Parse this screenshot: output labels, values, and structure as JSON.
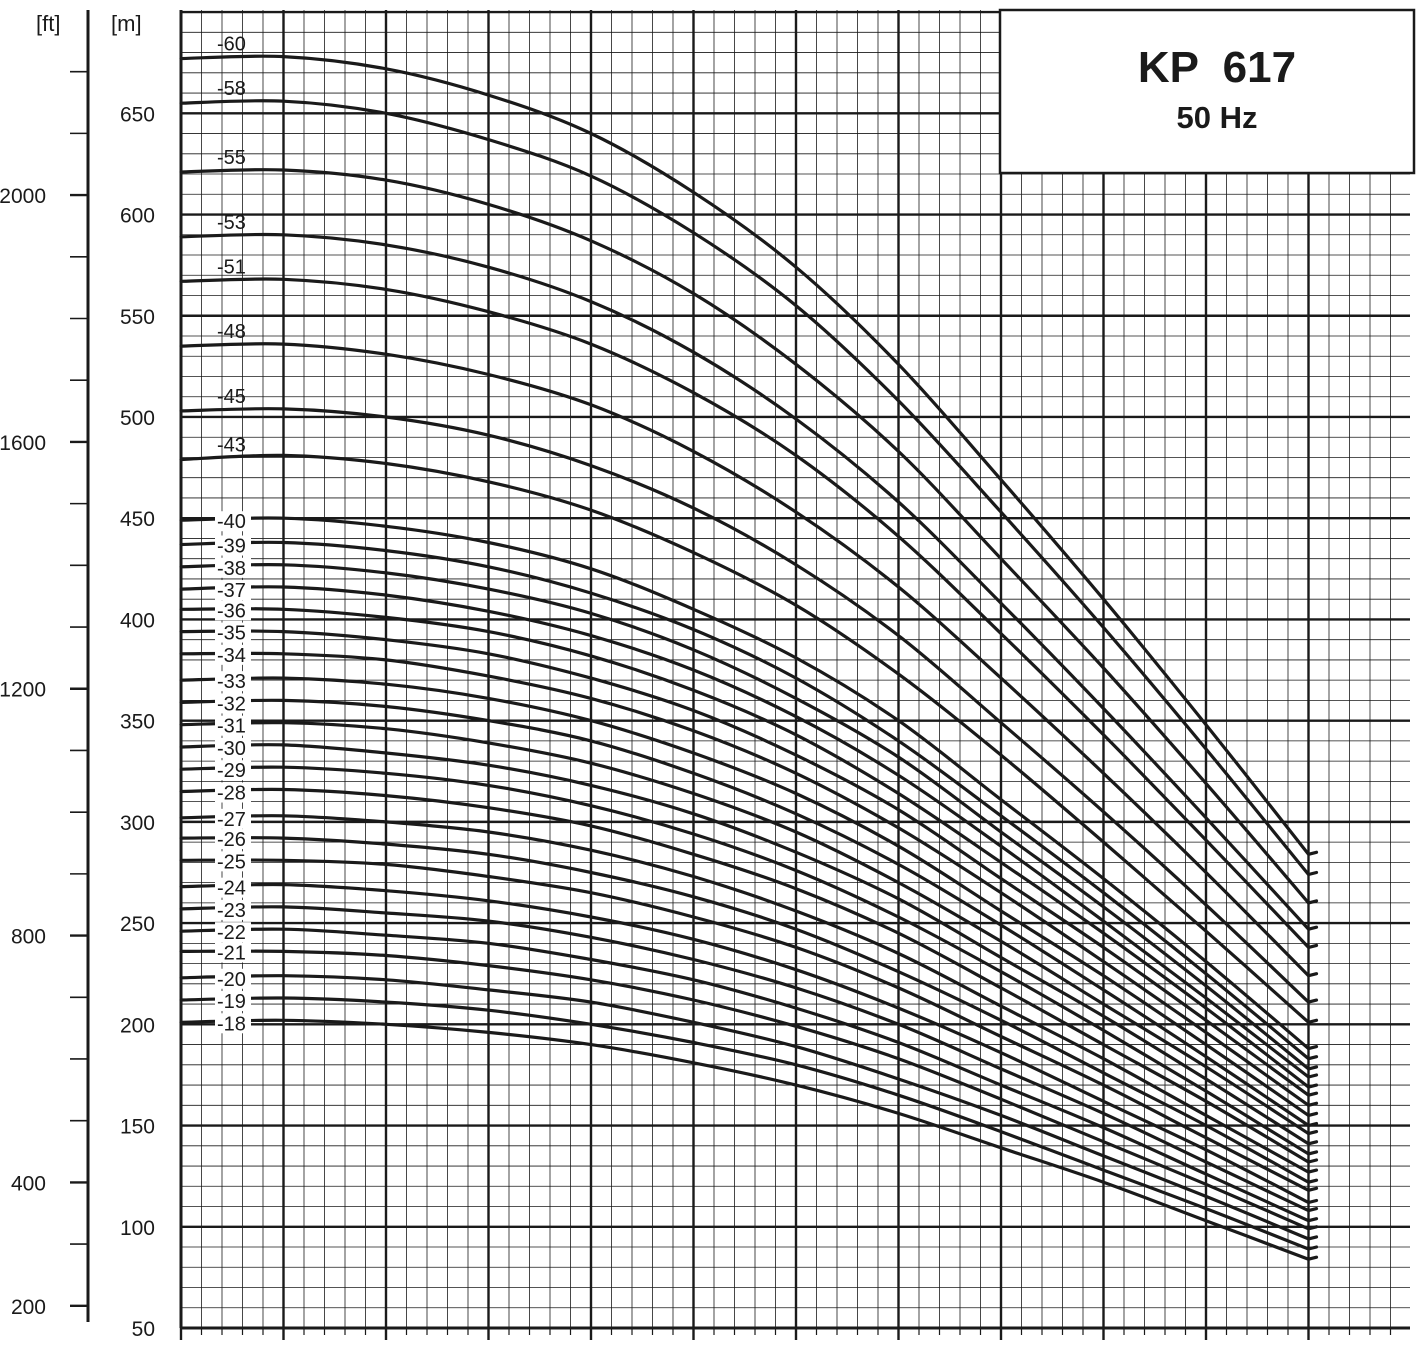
{
  "chart_data": {
    "type": "line",
    "title": "KP  617",
    "subtitle": "50 Hz",
    "axes": {
      "y_m": {
        "unit": "[m]",
        "min": 50,
        "max": 700,
        "ticks": [
          50,
          100,
          150,
          200,
          250,
          300,
          350,
          400,
          450,
          500,
          550,
          600,
          650
        ]
      },
      "y_ft": {
        "unit": "[ft]",
        "ticks": [
          200,
          400,
          800,
          1200,
          1600,
          2000
        ]
      },
      "x": {
        "min": 0,
        "max": 12,
        "tick_labels": []
      }
    },
    "grid": true,
    "curve_x": [
      0,
      1,
      2,
      3,
      4,
      5,
      6,
      7,
      8,
      9,
      10,
      11
    ],
    "series": [
      {
        "name": "-60",
        "values": [
          677,
          678,
          672,
          659,
          640,
          611,
          574,
          526,
          469,
          410,
          348,
          284
        ]
      },
      {
        "name": "-58",
        "values": [
          655,
          656,
          650,
          637,
          619,
          591,
          555,
          508,
          453,
          396,
          336,
          274
        ]
      },
      {
        "name": "-55",
        "values": [
          621,
          622,
          617,
          605,
          587,
          561,
          526,
          483,
          430,
          376,
          319,
          260
        ]
      },
      {
        "name": "-53",
        "values": [
          589,
          590,
          585,
          574,
          557,
          532,
          499,
          458,
          408,
          356,
          302,
          247
        ]
      },
      {
        "name": "-51",
        "values": [
          567,
          568,
          563,
          552,
          536,
          512,
          481,
          441,
          393,
          343,
          291,
          238
        ]
      },
      {
        "name": "-48",
        "values": [
          535,
          536,
          531,
          521,
          506,
          483,
          453,
          416,
          371,
          324,
          275,
          224
        ]
      },
      {
        "name": "-45",
        "values": [
          503,
          504,
          500,
          491,
          476,
          455,
          427,
          392,
          349,
          305,
          259,
          211
        ]
      },
      {
        "name": "-43",
        "values": [
          479,
          481,
          477,
          468,
          454,
          433,
          407,
          373,
          333,
          290,
          246,
          201
        ]
      },
      {
        "name": "-40",
        "values": [
          449,
          450,
          446,
          438,
          425,
          405,
          381,
          350,
          311,
          272,
          231,
          188
        ]
      },
      {
        "name": "-39",
        "values": [
          437,
          438,
          434,
          426,
          413,
          395,
          371,
          340,
          303,
          265,
          225,
          183
        ]
      },
      {
        "name": "-38",
        "values": [
          426,
          427,
          423,
          415,
          403,
          385,
          361,
          332,
          295,
          258,
          219,
          178
        ]
      },
      {
        "name": "-37",
        "values": [
          415,
          416,
          412,
          404,
          392,
          375,
          352,
          323,
          288,
          251,
          213,
          174
        ]
      },
      {
        "name": "-36",
        "values": [
          405,
          405,
          401,
          394,
          382,
          365,
          343,
          314,
          280,
          245,
          208,
          169
        ]
      },
      {
        "name": "-35",
        "values": [
          394,
          394,
          390,
          383,
          371,
          355,
          333,
          306,
          272,
          238,
          202,
          165
        ]
      },
      {
        "name": "-34",
        "values": [
          383,
          383,
          380,
          372,
          361,
          345,
          324,
          297,
          265,
          231,
          196,
          160
        ]
      },
      {
        "name": "-33",
        "values": [
          370,
          371,
          368,
          361,
          350,
          334,
          314,
          288,
          256,
          224,
          190,
          155
        ]
      },
      {
        "name": "-32",
        "values": [
          359,
          360,
          357,
          350,
          340,
          324,
          304,
          279,
          249,
          217,
          184,
          150
        ]
      },
      {
        "name": "-31",
        "values": [
          348,
          349,
          346,
          339,
          329,
          314,
          295,
          270,
          241,
          210,
          179,
          146
        ]
      },
      {
        "name": "-30",
        "values": [
          337,
          338,
          334,
          328,
          318,
          304,
          285,
          262,
          233,
          204,
          173,
          141
        ]
      },
      {
        "name": "-29",
        "values": [
          326,
          327,
          324,
          318,
          308,
          294,
          276,
          253,
          226,
          197,
          167,
          136
        ]
      },
      {
        "name": "-28",
        "values": [
          315,
          316,
          313,
          307,
          298,
          284,
          267,
          245,
          218,
          190,
          162,
          132
        ]
      },
      {
        "name": "-27",
        "values": [
          302,
          303,
          300,
          295,
          286,
          273,
          256,
          235,
          209,
          183,
          155,
          127
        ]
      },
      {
        "name": "-26",
        "values": [
          292,
          292,
          289,
          284,
          275,
          263,
          247,
          226,
          202,
          176,
          150,
          122
        ]
      },
      {
        "name": "-25",
        "values": [
          281,
          281,
          279,
          273,
          265,
          253,
          238,
          218,
          194,
          170,
          144,
          118
        ]
      },
      {
        "name": "-24",
        "values": [
          268,
          269,
          266,
          261,
          253,
          242,
          227,
          208,
          186,
          162,
          138,
          112
        ]
      },
      {
        "name": "-23",
        "values": [
          257,
          258,
          255,
          251,
          243,
          232,
          218,
          200,
          178,
          156,
          132,
          108
        ]
      },
      {
        "name": "-22",
        "values": [
          246,
          247,
          244,
          240,
          232,
          222,
          208,
          191,
          170,
          149,
          126,
          103
        ]
      },
      {
        "name": "-21",
        "values": [
          236,
          236,
          234,
          229,
          222,
          212,
          199,
          183,
          163,
          142,
          121,
          99
        ]
      },
      {
        "name": "-20",
        "values": [
          223,
          224,
          222,
          217,
          211,
          201,
          189,
          173,
          155,
          135,
          115,
          94
        ]
      },
      {
        "name": "-19",
        "values": [
          212,
          213,
          211,
          207,
          200,
          191,
          180,
          165,
          147,
          128,
          109,
          89
        ]
      },
      {
        "name": "-18",
        "values": [
          201,
          202,
          200,
          196,
          190,
          181,
          170,
          156,
          139,
          122,
          103,
          84
        ]
      }
    ]
  }
}
